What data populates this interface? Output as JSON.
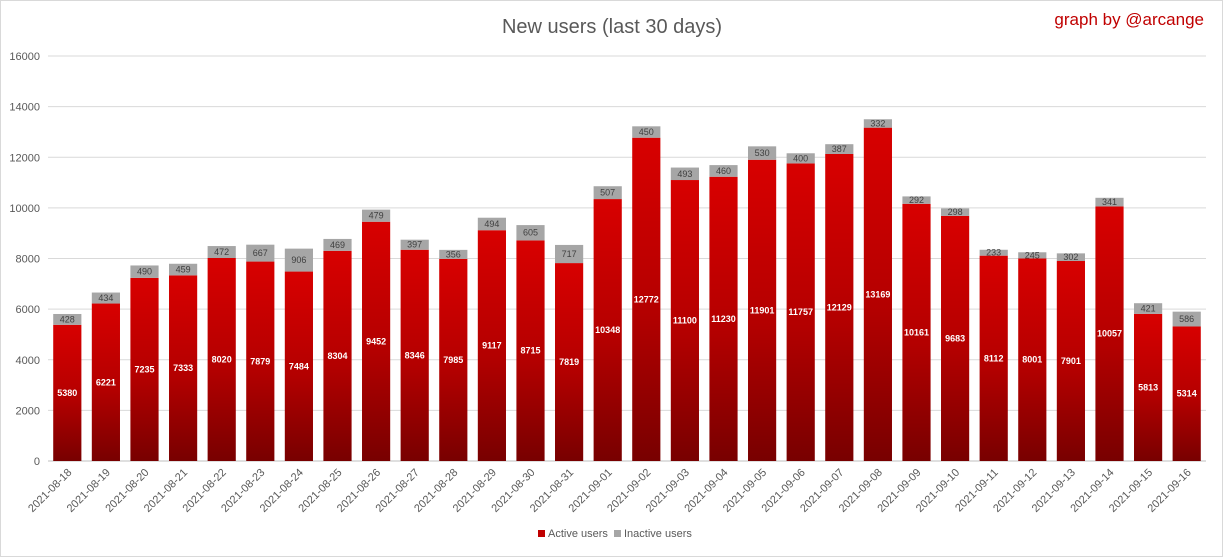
{
  "chart_data": {
    "type": "bar",
    "stacked": true,
    "title": "New users (last 30 days)",
    "credit": "graph by @arcange",
    "xlabel": "",
    "ylabel": "",
    "ylim": [
      0,
      16000
    ],
    "yticks": [
      0,
      2000,
      4000,
      6000,
      8000,
      10000,
      12000,
      14000,
      16000
    ],
    "grid": true,
    "legend_position": "bottom",
    "categories": [
      "2021-08-18",
      "2021-08-19",
      "2021-08-20",
      "2021-08-21",
      "2021-08-22",
      "2021-08-23",
      "2021-08-24",
      "2021-08-25",
      "2021-08-26",
      "2021-08-27",
      "2021-08-28",
      "2021-08-29",
      "2021-08-30",
      "2021-08-31",
      "2021-09-01",
      "2021-09-02",
      "2021-09-03",
      "2021-09-04",
      "2021-09-05",
      "2021-09-06",
      "2021-09-07",
      "2021-09-08",
      "2021-09-09",
      "2021-09-10",
      "2021-09-11",
      "2021-09-12",
      "2021-09-13",
      "2021-09-14",
      "2021-09-15",
      "2021-09-16"
    ],
    "series": [
      {
        "name": "Active users",
        "color": "#c00000",
        "values": [
          5380,
          6221,
          7235,
          7333,
          8020,
          7879,
          7484,
          8304,
          9452,
          8346,
          7985,
          9117,
          8715,
          7819,
          10348,
          12772,
          11100,
          11230,
          11901,
          11757,
          12129,
          13169,
          10161,
          9683,
          8112,
          8001,
          7901,
          10057,
          5813,
          5314
        ]
      },
      {
        "name": "Inactive users",
        "color": "#a6a6a6",
        "values": [
          428,
          434,
          490,
          459,
          472,
          667,
          906,
          469,
          479,
          397,
          356,
          494,
          605,
          717,
          507,
          450,
          493,
          460,
          530,
          400,
          387,
          332,
          292,
          298,
          233,
          245,
          302,
          341,
          421,
          586
        ]
      }
    ]
  }
}
